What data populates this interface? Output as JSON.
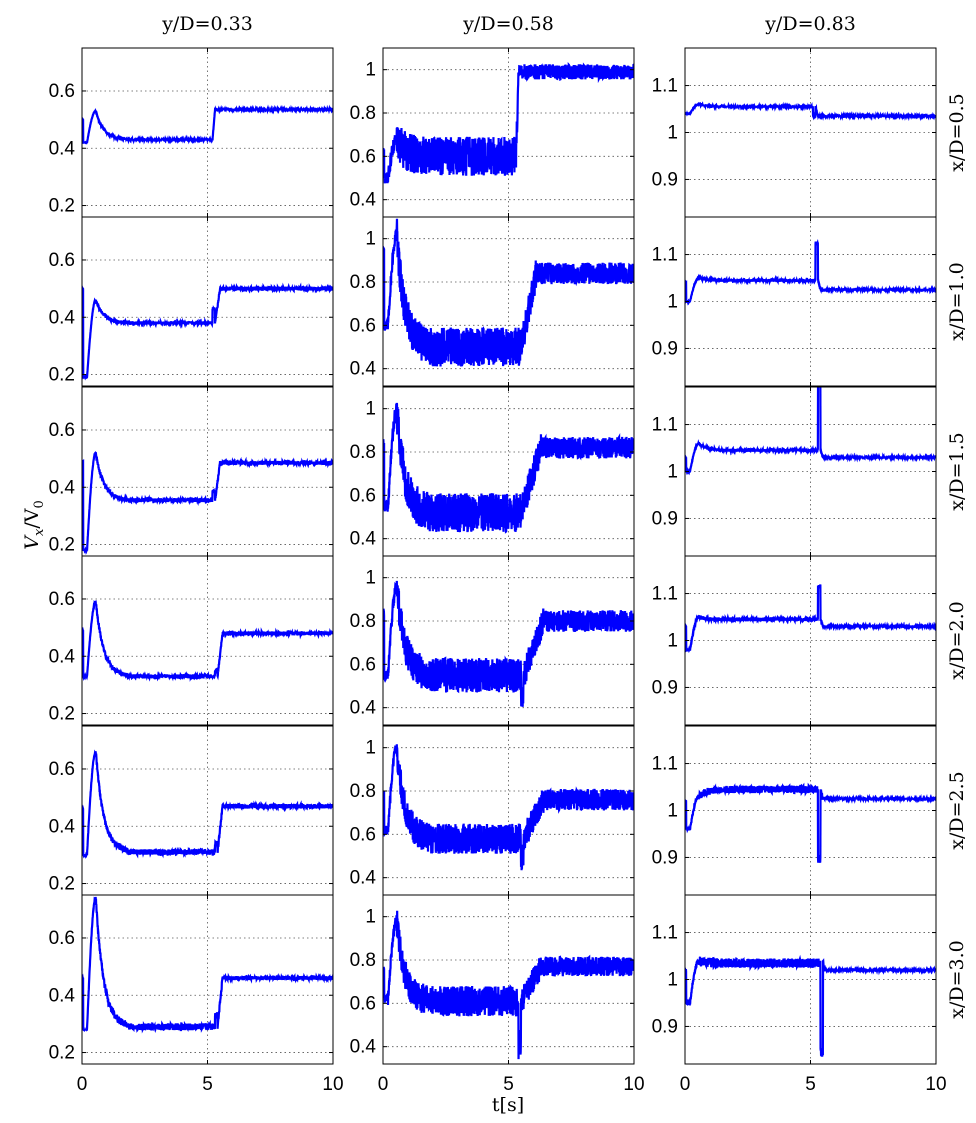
{
  "figure": {
    "ylabel_main": "V",
    "ylabel_sub_x": "x",
    "ylabel_div": "/V",
    "ylabel_sub_0": "0",
    "xlabel": "t[s]"
  },
  "chart_data": {
    "type": "line",
    "title": "",
    "xlabel": "t[s]",
    "ylabel": "V_x/V_0",
    "grid": true,
    "legend": "none",
    "series_color": "#0000ff",
    "columns": [
      "y/D=0.33",
      "y/D=0.58",
      "y/D=0.83"
    ],
    "rows": [
      "x/D=0.5",
      "x/D=1.0",
      "x/D=1.5",
      "x/D=2.0",
      "x/D=2.5",
      "x/D=3.0"
    ],
    "xlim": [
      0,
      10
    ],
    "xticks": [
      "0",
      "5",
      "10"
    ],
    "column_axes": [
      {
        "ylim": [
          0.16,
          0.75
        ],
        "yticks": [
          "0.2",
          "0.4",
          "0.6"
        ],
        "ytick_values": [
          0.2,
          0.4,
          0.6
        ]
      },
      {
        "ylim": [
          0.32,
          1.1
        ],
        "yticks": [
          "0.4",
          "0.6",
          "0.8",
          "1"
        ],
        "ytick_values": [
          0.4,
          0.6,
          0.8,
          1.0
        ]
      },
      {
        "ylim": [
          0.82,
          1.18
        ],
        "yticks": [
          "0.9",
          "1",
          "1.1"
        ],
        "ytick_values": [
          0.9,
          1.0,
          1.1
        ]
      }
    ],
    "panels": [
      [
        {
          "start": 0.5,
          "spike": 0.53,
          "dip": 0.42,
          "before": 0.43,
          "switch": 5.1,
          "after": 0.535,
          "transient": 0.0,
          "noise_before": 0.003,
          "noise_after": 0.003,
          "ramp": 0.2
        },
        {
          "start": 0.62,
          "spike": 0.68,
          "dip": 0.5,
          "before": 0.6,
          "switch": 5.2,
          "after": 0.99,
          "transient": 0.0,
          "noise_before": 0.09,
          "noise_after": 0.035,
          "ramp": 0.2
        },
        {
          "start": 1.04,
          "spike": 1.06,
          "dip": 1.04,
          "before": 1.055,
          "switch": 5.1,
          "after": 1.035,
          "transient": -0.02,
          "noise_before": 0.002,
          "noise_after": 0.002,
          "ramp": 0.2
        }
      ],
      [
        {
          "start": 0.5,
          "spike": 0.46,
          "dip": 0.19,
          "before": 0.38,
          "switch": 5.2,
          "after": 0.5,
          "transient": 0.05,
          "noise_before": 0.006,
          "noise_after": 0.007,
          "ramp": 0.3
        },
        {
          "start": 0.95,
          "spike": 1.02,
          "dip": 0.6,
          "before": 0.5,
          "switch": 5.4,
          "after": 0.84,
          "transient": 0.0,
          "noise_before": 0.09,
          "noise_after": 0.05,
          "ramp": 0.7
        },
        {
          "start": 1.04,
          "spike": 1.05,
          "dip": 1.0,
          "before": 1.045,
          "switch": 5.2,
          "after": 1.025,
          "transient": 0.08,
          "noise_before": 0.003,
          "noise_after": 0.002,
          "ramp": 0.2
        }
      ],
      [
        {
          "start": 0.49,
          "spike": 0.52,
          "dip": 0.18,
          "before": 0.355,
          "switch": 5.2,
          "after": 0.485,
          "transient": 0.03,
          "noise_before": 0.007,
          "noise_after": 0.007,
          "ramp": 0.3
        },
        {
          "start": 0.85,
          "spike": 0.99,
          "dip": 0.55,
          "before": 0.52,
          "switch": 5.4,
          "after": 0.82,
          "transient": 0.0,
          "noise_before": 0.09,
          "noise_after": 0.05,
          "ramp": 0.9
        },
        {
          "start": 1.03,
          "spike": 1.06,
          "dip": 1.0,
          "before": 1.045,
          "switch": 5.3,
          "after": 1.03,
          "transient": 0.14,
          "noise_before": 0.003,
          "noise_after": 0.002,
          "ramp": 0.2
        }
      ],
      [
        {
          "start": 0.49,
          "spike": 0.59,
          "dip": 0.33,
          "before": 0.33,
          "switch": 5.3,
          "after": 0.48,
          "transient": 0.02,
          "noise_before": 0.007,
          "noise_after": 0.007,
          "ramp": 0.3
        },
        {
          "start": 0.84,
          "spike": 0.96,
          "dip": 0.55,
          "before": 0.55,
          "switch": 5.5,
          "after": 0.8,
          "transient": -0.12,
          "noise_before": 0.08,
          "noise_after": 0.05,
          "ramp": 0.9
        },
        {
          "start": 1.03,
          "spike": 1.05,
          "dip": 0.98,
          "before": 1.045,
          "switch": 5.3,
          "after": 1.03,
          "transient": 0.07,
          "noise_before": 0.004,
          "noise_after": 0.002,
          "ramp": 0.2
        }
      ],
      [
        {
          "start": 0.46,
          "spike": 0.66,
          "dip": 0.3,
          "before": 0.31,
          "switch": 5.3,
          "after": 0.47,
          "transient": 0.03,
          "noise_before": 0.01,
          "noise_after": 0.008,
          "ramp": 0.3
        },
        {
          "start": 0.78,
          "spike": 1.0,
          "dip": 0.62,
          "before": 0.58,
          "switch": 5.5,
          "after": 0.76,
          "transient": -0.08,
          "noise_before": 0.07,
          "noise_after": 0.05,
          "ramp": 0.9
        },
        {
          "start": 1.02,
          "spike": 1.03,
          "dip": 0.96,
          "before": 1.045,
          "switch": 5.3,
          "after": 1.025,
          "transient": -0.15,
          "noise_before": 0.008,
          "noise_after": 0.002,
          "ramp": 0.2
        }
      ],
      [
        {
          "start": 0.46,
          "spike": 0.74,
          "dip": 0.28,
          "before": 0.29,
          "switch": 5.3,
          "after": 0.46,
          "transient": 0.04,
          "noise_before": 0.012,
          "noise_after": 0.007,
          "ramp": 0.3
        },
        {
          "start": 0.75,
          "spike": 0.98,
          "dip": 0.62,
          "before": 0.61,
          "switch": 5.4,
          "after": 0.77,
          "transient": -0.2,
          "noise_before": 0.07,
          "noise_after": 0.045,
          "ramp": 0.9
        },
        {
          "start": 1.02,
          "spike": 1.04,
          "dip": 0.95,
          "before": 1.035,
          "switch": 5.4,
          "after": 1.02,
          "transient": -0.19,
          "noise_before": 0.01,
          "noise_after": 0.002,
          "ramp": 0.2
        }
      ]
    ]
  }
}
